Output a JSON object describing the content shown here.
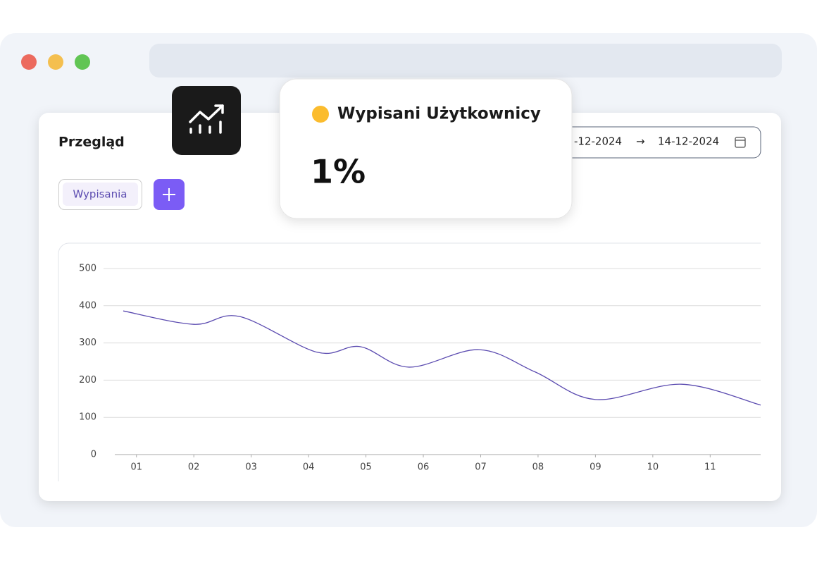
{
  "card": {
    "title": "Przegląd",
    "date_from": "-12-2024",
    "date_arrow": "→",
    "date_to": "14-12-2024",
    "filter_chip": "Wypisania"
  },
  "popup": {
    "label": "Wypisani Użytkownicy",
    "value": "1%"
  },
  "chart_data": {
    "type": "line",
    "x": [
      0.77,
      2.0,
      2.8,
      4.15,
      4.9,
      5.75,
      6.97,
      7.95,
      9.0,
      10.5,
      11.88
    ],
    "series": [
      {
        "color": "#5b4bb0",
        "values": [
          386,
          350,
          371,
          275,
          290,
          235,
          282,
          222,
          148,
          189,
          133
        ]
      }
    ],
    "xlim": [
      0.77,
      11.88
    ],
    "xticks": [
      {
        "value": 1,
        "label": "01"
      },
      {
        "value": 2,
        "label": "02"
      },
      {
        "value": 3,
        "label": "03"
      },
      {
        "value": 4,
        "label": "04"
      },
      {
        "value": 5,
        "label": "05"
      },
      {
        "value": 6,
        "label": "06"
      },
      {
        "value": 7,
        "label": "07"
      },
      {
        "value": 8,
        "label": "08"
      },
      {
        "value": 9,
        "label": "09"
      },
      {
        "value": 10,
        "label": "10"
      },
      {
        "value": 11,
        "label": "11"
      }
    ],
    "ylim": [
      0,
      500
    ],
    "yticks": [
      0,
      100,
      200,
      300,
      400,
      500
    ],
    "grid": true
  }
}
